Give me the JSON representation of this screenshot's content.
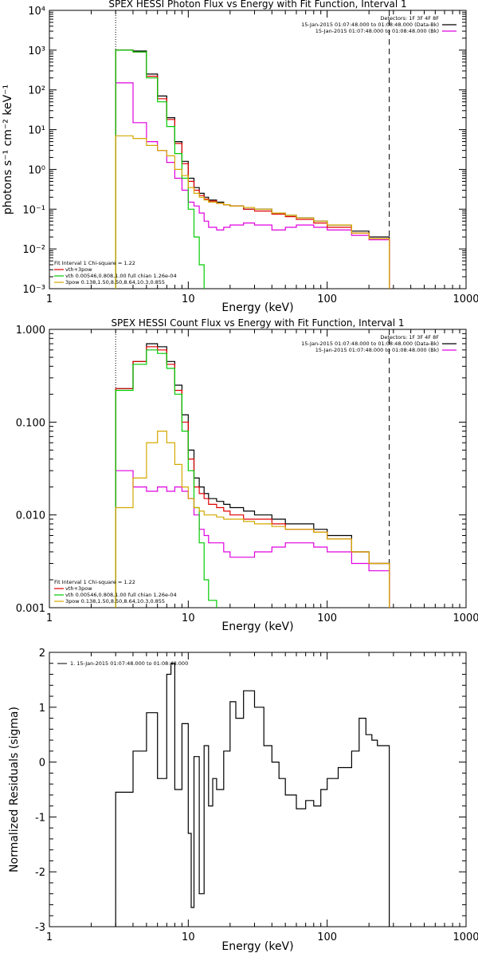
{
  "chart_data": [
    {
      "type": "line",
      "title": "SPEX HESSI Photon Flux vs Energy with Fit Function, Interval 1",
      "xlabel": "Energy (keV)",
      "ylabel": "photons s⁻¹ cm⁻² keV⁻¹",
      "xscale": "log",
      "yscale": "log",
      "xlim": [
        1,
        1000
      ],
      "ylim": [
        0.001,
        10000
      ],
      "xticks": [
        "1",
        "10",
        "100",
        "1000"
      ],
      "yticks": [
        "10⁻³",
        "10⁻²",
        "10⁻¹",
        "10⁰",
        "10¹",
        "10²",
        "10³",
        "10⁴"
      ],
      "vlines": [
        {
          "x": 3,
          "style": "dotted"
        },
        {
          "x": 280,
          "style": "dashed"
        }
      ],
      "legend_top": [
        "Detectors: 1F 3F 4F 8F",
        "15-Jan-2015 01:07:48.000 to 01:08:48.000 (Data-Bk)",
        "15-Jan-2015 01:07:48.000 to 01:08:48.000 (Bk)"
      ],
      "legend_bottom": [
        "Fit Interval 1    Chi-square = 1.22",
        "vth+3pow",
        "vth 0.00546,0.808,1.00  full chian 1.26e-04",
        "3pow 0.138,1.50,8.50,8.64,10.3,0.855"
      ],
      "series": [
        {
          "name": "15-Jan-2015 01:07:48.000 to 01:08:48.000 (Data-Bk)",
          "color": "#000000",
          "x": [
            3,
            4,
            5,
            6,
            7,
            8,
            9,
            10,
            11,
            12,
            13,
            14,
            16,
            18,
            20,
            25,
            30,
            40,
            50,
            60,
            80,
            100,
            150,
            200,
            280
          ],
          "y": [
            1000,
            950,
            250,
            70,
            20,
            5,
            1.6,
            0.6,
            0.35,
            0.25,
            0.2,
            0.17,
            0.15,
            0.13,
            0.12,
            0.1,
            0.1,
            0.08,
            0.07,
            0.06,
            0.05,
            0.04,
            0.028,
            0.02,
            0.01
          ]
        },
        {
          "name": "15-Jan-2015 01:07:48.000 to 01:08:48.000 (Bk)",
          "color": "#e000e0",
          "x": [
            3,
            4,
            5,
            6,
            7,
            8,
            9,
            10,
            11,
            12,
            13,
            14,
            16,
            18,
            20,
            25,
            30,
            40,
            50,
            60,
            80,
            100,
            150,
            200,
            280
          ],
          "y": [
            150,
            15,
            5,
            3,
            1.5,
            0.6,
            0.3,
            0.15,
            0.12,
            0.08,
            0.05,
            0.035,
            0.03,
            0.035,
            0.04,
            0.045,
            0.04,
            0.03,
            0.035,
            0.04,
            0.035,
            0.03,
            0.022,
            0.017,
            0.01
          ]
        },
        {
          "name": "vth+3pow",
          "color": "#e00000",
          "x": [
            3,
            4,
            5,
            6,
            7,
            8,
            9,
            10,
            11,
            12,
            13,
            14,
            16,
            18,
            20,
            25,
            30,
            40,
            50,
            60,
            80,
            100,
            150,
            200,
            280
          ],
          "y": [
            1000,
            900,
            220,
            60,
            18,
            4.5,
            1.4,
            0.5,
            0.3,
            0.22,
            0.18,
            0.16,
            0.14,
            0.13,
            0.12,
            0.1,
            0.09,
            0.075,
            0.065,
            0.055,
            0.045,
            0.035,
            0.025,
            0.018,
            0.01
          ]
        },
        {
          "name": "vth 0.00546,0.808,1.00  full chian 1.26e-04",
          "color": "#00cc00",
          "x": [
            3,
            4,
            5,
            6,
            7,
            8,
            9,
            10,
            11,
            12,
            13
          ],
          "y": [
            1000,
            900,
            200,
            50,
            12,
            2.5,
            0.6,
            0.1,
            0.02,
            0.004,
            0.001
          ]
        },
        {
          "name": "3pow 0.138,1.50,8.50,8.64,10.3,0.855",
          "color": "#d4a800",
          "x": [
            3,
            4,
            5,
            6,
            7,
            8,
            9,
            10,
            11,
            12,
            13,
            14,
            16,
            18,
            20,
            25,
            30,
            40,
            50,
            60,
            80,
            100,
            150,
            200,
            280
          ],
          "y": [
            7,
            6,
            4,
            3,
            2.2,
            1,
            0.7,
            0.35,
            0.25,
            0.2,
            0.17,
            0.15,
            0.14,
            0.13,
            0.12,
            0.11,
            0.1,
            0.08,
            0.07,
            0.06,
            0.05,
            0.04,
            0.025,
            0.018,
            0.01
          ]
        }
      ]
    },
    {
      "type": "line",
      "title": "SPEX HESSI Count Flux vs Energy with Fit Function, Interval 1",
      "xlabel": "Energy (keV)",
      "ylabel": "",
      "xscale": "log",
      "yscale": "log",
      "xlim": [
        1,
        1000
      ],
      "ylim": [
        0.001,
        1.0
      ],
      "xticks": [
        "1",
        "10",
        "100",
        "1000"
      ],
      "yticks": [
        "0.001",
        "0.010",
        "0.100",
        "1.000"
      ],
      "vlines": [
        {
          "x": 3,
          "style": "dotted"
        },
        {
          "x": 280,
          "style": "dashed"
        }
      ],
      "legend_top": [
        "Detectors: 1F 3F 4F 8F",
        "15-Jan-2015 01:07:48.000 to 01:08:48.000 (Data-Bk)",
        "15-Jan-2015 01:07:48.000 to 01:08:48.000 (Bk)"
      ],
      "legend_bottom": [
        "Fit Interval 1    Chi-square = 1.22",
        "vth+3pow",
        "vth 0.00546,0.808,1.00  full chian 1.26e-04",
        "3pow 0.138,1.50,8.50,8.64,10.3,0.855"
      ],
      "series": [
        {
          "name": "15-Jan-2015 01:07:48.000 to 01:08:48.000 (Data-Bk)",
          "color": "#000000",
          "x": [
            3,
            4,
            5,
            6,
            7,
            8,
            9,
            10,
            11,
            12,
            13,
            14,
            16,
            18,
            20,
            25,
            30,
            40,
            50,
            60,
            80,
            100,
            150,
            200,
            280
          ],
          "y": [
            0.23,
            0.45,
            0.7,
            0.65,
            0.45,
            0.25,
            0.12,
            0.05,
            0.025,
            0.02,
            0.017,
            0.015,
            0.014,
            0.013,
            0.012,
            0.011,
            0.01,
            0.009,
            0.008,
            0.008,
            0.007,
            0.006,
            0.004,
            0.003,
            0.0017
          ]
        },
        {
          "name": "15-Jan-2015 01:07:48.000 to 01:08:48.000 (Bk)",
          "color": "#e000e0",
          "x": [
            3,
            4,
            5,
            6,
            7,
            8,
            9,
            10,
            11,
            12,
            13,
            14,
            16,
            18,
            20,
            25,
            30,
            40,
            50,
            60,
            80,
            100,
            150,
            200,
            280
          ],
          "y": [
            0.03,
            0.02,
            0.018,
            0.02,
            0.018,
            0.02,
            0.018,
            0.015,
            0.01,
            0.007,
            0.006,
            0.005,
            0.005,
            0.004,
            0.0035,
            0.0035,
            0.004,
            0.0045,
            0.005,
            0.005,
            0.0045,
            0.004,
            0.003,
            0.0025,
            0.0017
          ]
        },
        {
          "name": "vth+3pow",
          "color": "#e00000",
          "x": [
            3,
            4,
            5,
            6,
            7,
            8,
            9,
            10,
            11,
            12,
            13,
            14,
            16,
            18,
            20,
            25,
            30,
            40,
            50,
            60,
            80,
            100,
            150,
            200,
            280
          ],
          "y": [
            0.23,
            0.45,
            0.65,
            0.6,
            0.42,
            0.22,
            0.1,
            0.04,
            0.02,
            0.017,
            0.015,
            0.013,
            0.012,
            0.011,
            0.01,
            0.009,
            0.009,
            0.008,
            0.007,
            0.007,
            0.0065,
            0.0055,
            0.004,
            0.003,
            0.0017
          ]
        },
        {
          "name": "vth 0.00546,0.808,1.00  full chian 1.26e-04",
          "color": "#00cc00",
          "x": [
            3,
            4,
            5,
            6,
            7,
            8,
            9,
            10,
            11,
            12,
            13,
            14,
            16
          ],
          "y": [
            0.22,
            0.42,
            0.6,
            0.55,
            0.38,
            0.2,
            0.08,
            0.03,
            0.012,
            0.005,
            0.002,
            0.0012,
            0.001
          ]
        },
        {
          "name": "3pow 0.138,1.50,8.50,8.64,10.3,0.855",
          "color": "#d4a800",
          "x": [
            3,
            4,
            5,
            6,
            7,
            8,
            9,
            10,
            11,
            12,
            13,
            14,
            16,
            18,
            20,
            25,
            30,
            40,
            50,
            60,
            80,
            100,
            150,
            200,
            280
          ],
          "y": [
            0.012,
            0.025,
            0.06,
            0.08,
            0.06,
            0.035,
            0.02,
            0.015,
            0.012,
            0.011,
            0.01,
            0.01,
            0.0095,
            0.009,
            0.009,
            0.0085,
            0.008,
            0.0075,
            0.007,
            0.007,
            0.0065,
            0.0055,
            0.004,
            0.003,
            0.0017
          ]
        }
      ]
    },
    {
      "type": "line",
      "title": "",
      "xlabel": "Energy (keV)",
      "ylabel": "Normalized Residuals (sigma)",
      "xscale": "log",
      "yscale": "linear",
      "xlim": [
        1,
        1000
      ],
      "ylim": [
        -3,
        2
      ],
      "xticks": [
        "1",
        "10",
        "100",
        "1000"
      ],
      "yticks": [
        "-3",
        "-2",
        "-1",
        "0",
        "1",
        "2"
      ],
      "legend_top": [
        "1. 15-Jan-2015 01:07:48.000 to 01:08:48.000"
      ],
      "series": [
        {
          "name": "1. 15-Jan-2015 01:07:48.000 to 01:08:48.000",
          "color": "#000000",
          "x": [
            3,
            4,
            5,
            6,
            7,
            7.5,
            8,
            9,
            10,
            10.5,
            11,
            12,
            13,
            14,
            15,
            16,
            18,
            20,
            22,
            25,
            30,
            35,
            40,
            45,
            50,
            60,
            70,
            80,
            90,
            100,
            120,
            150,
            170,
            190,
            210,
            230,
            260,
            280
          ],
          "y": [
            -0.55,
            0.2,
            0.9,
            -0.3,
            1.6,
            1.8,
            -0.5,
            0.7,
            -1.3,
            -2.65,
            0.1,
            -2.4,
            0.3,
            -0.8,
            -0.3,
            -0.5,
            0.2,
            1.1,
            0.8,
            1.3,
            1.0,
            0.3,
            0.0,
            -0.3,
            -0.6,
            -0.85,
            -0.7,
            -0.8,
            -0.5,
            -0.3,
            -0.1,
            0.2,
            0.8,
            0.5,
            0.4,
            0.3,
            0.3,
            0.3
          ]
        }
      ]
    }
  ]
}
